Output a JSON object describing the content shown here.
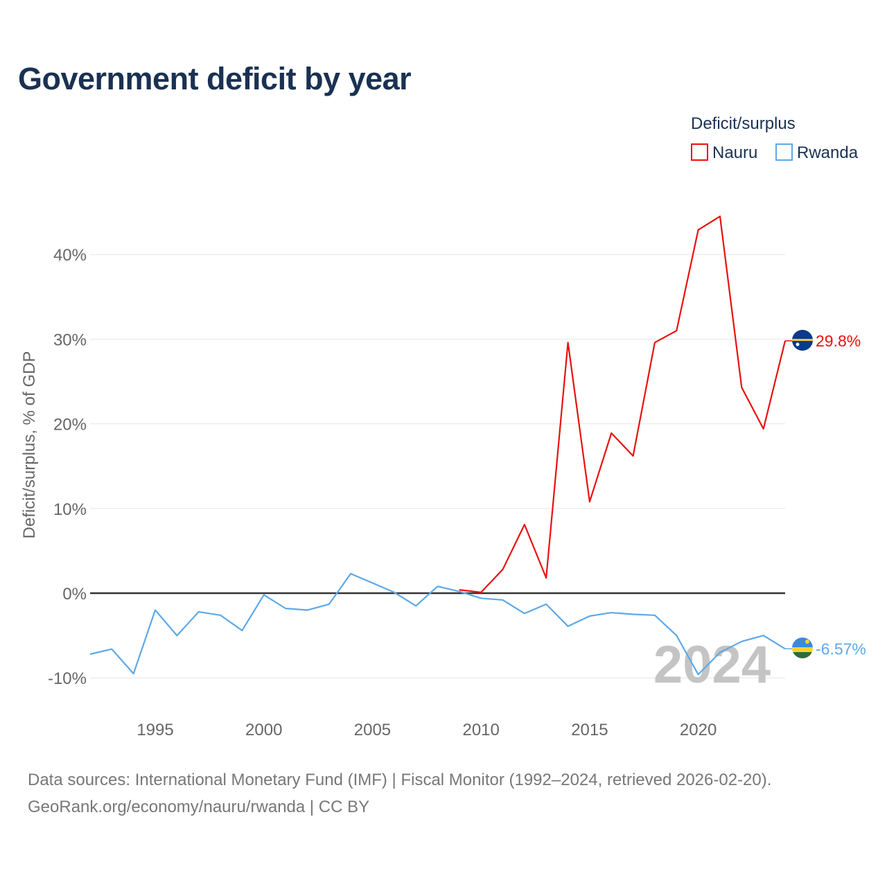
{
  "title": "Government deficit by year",
  "legend": {
    "title": "Deficit/surplus",
    "items": [
      {
        "label": "Nauru",
        "color": "#e8100f"
      },
      {
        "label": "Rwanda",
        "color": "#5da8e8"
      }
    ]
  },
  "year_watermark": "2024",
  "footer": {
    "sources": "Data sources: International Monetary Fund (IMF) | Fiscal Monitor (1992–2024, retrieved 2026-02-20).",
    "credit": "GeoRank.org/economy/nauru/rwanda | CC BY"
  },
  "chart_data": {
    "type": "line",
    "title": "Government deficit by year",
    "xlabel": "",
    "ylabel": "Deficit/surplus, % of GDP",
    "xlim": [
      1992,
      2024
    ],
    "ylim": [
      -15,
      50
    ],
    "y_ticks": [
      -10,
      0,
      10,
      20,
      30,
      40
    ],
    "y_tick_labels": [
      "-10%",
      "0%",
      "10%",
      "20%",
      "30%",
      "40%"
    ],
    "x_ticks": [
      1995,
      2000,
      2005,
      2010,
      2015,
      2020
    ],
    "x_tick_labels": [
      "1995",
      "2000",
      "2005",
      "2010",
      "2015",
      "2020"
    ],
    "grid": true,
    "legend_position": "top-right",
    "series": [
      {
        "name": "Nauru",
        "color": "#e8100f",
        "x": [
          2009,
          2010,
          2011,
          2012,
          2013,
          2014,
          2015,
          2016,
          2017,
          2018,
          2019,
          2020,
          2021,
          2022,
          2023,
          2024
        ],
        "values": [
          0.4,
          0.1,
          2.8,
          8.1,
          1.8,
          29.6,
          10.8,
          18.9,
          16.2,
          29.6,
          31.0,
          42.9,
          44.5,
          24.3,
          19.4,
          29.8
        ],
        "end_label": "29.8%"
      },
      {
        "name": "Rwanda",
        "color": "#5da8e8",
        "x": [
          1992,
          1993,
          1994,
          1995,
          1996,
          1997,
          1998,
          1999,
          2000,
          2001,
          2002,
          2003,
          2004,
          2005,
          2006,
          2007,
          2008,
          2009,
          2010,
          2011,
          2012,
          2013,
          2014,
          2015,
          2016,
          2017,
          2018,
          2019,
          2020,
          2021,
          2022,
          2023,
          2024
        ],
        "values": [
          -7.2,
          -6.6,
          -9.5,
          -2.0,
          -5.0,
          -2.2,
          -2.6,
          -4.4,
          -0.2,
          -1.8,
          -2.0,
          -1.3,
          2.3,
          1.2,
          0.1,
          -1.5,
          0.8,
          0.2,
          -0.6,
          -0.8,
          -2.4,
          -1.3,
          -3.9,
          -2.7,
          -2.3,
          -2.5,
          -2.6,
          -5.0,
          -9.6,
          -7.0,
          -5.7,
          -5.0,
          -6.57
        ],
        "end_label": "-6.57%"
      }
    ]
  }
}
